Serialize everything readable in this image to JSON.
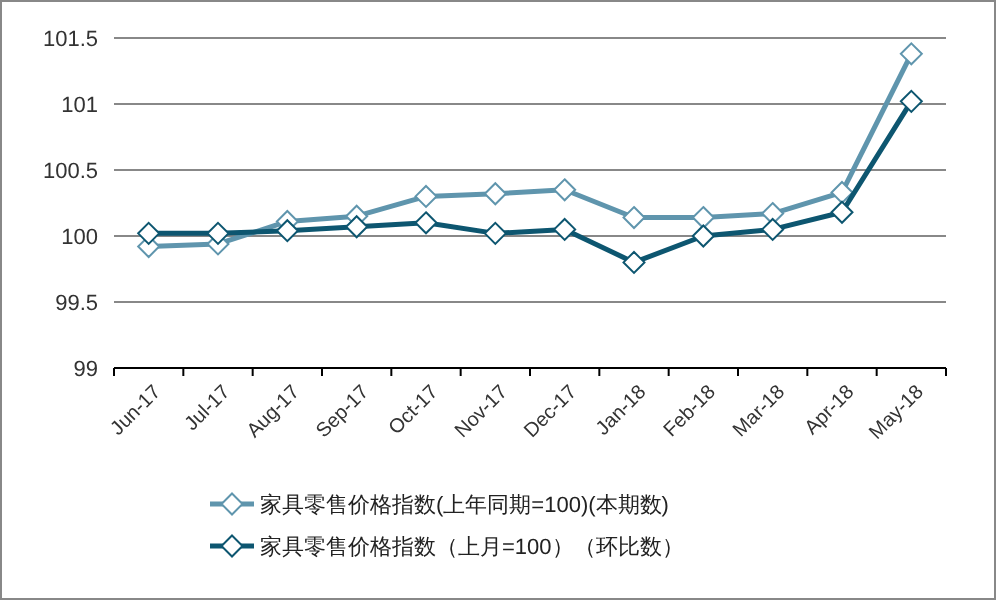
{
  "chart_data": {
    "type": "line",
    "categories": [
      "Jun-17",
      "Jul-17",
      "Aug-17",
      "Sep-17",
      "Oct-17",
      "Nov-17",
      "Dec-17",
      "Jan-18",
      "Feb-18",
      "Mar-18",
      "Apr-18",
      "May-18"
    ],
    "series": [
      {
        "name": "家具零售价格指数(上年同期=100)(本期数)",
        "color": "#5f95ad",
        "values": [
          99.92,
          99.94,
          100.11,
          100.15,
          100.3,
          100.32,
          100.35,
          100.14,
          100.14,
          100.17,
          100.33,
          101.38
        ]
      },
      {
        "name": "家具零售价格指数（上月=100）（环比数）",
        "color": "#0d5670",
        "values": [
          100.02,
          100.02,
          100.04,
          100.07,
          100.1,
          100.02,
          100.05,
          99.8,
          100.0,
          100.05,
          100.18,
          101.02
        ]
      }
    ],
    "ylim": [
      99,
      101.5
    ],
    "yticks": [
      99,
      99.5,
      100,
      100.5,
      101,
      101.5
    ],
    "grid": "y",
    "legend": "bottom",
    "marker": "diamond",
    "line_style": "solid"
  }
}
